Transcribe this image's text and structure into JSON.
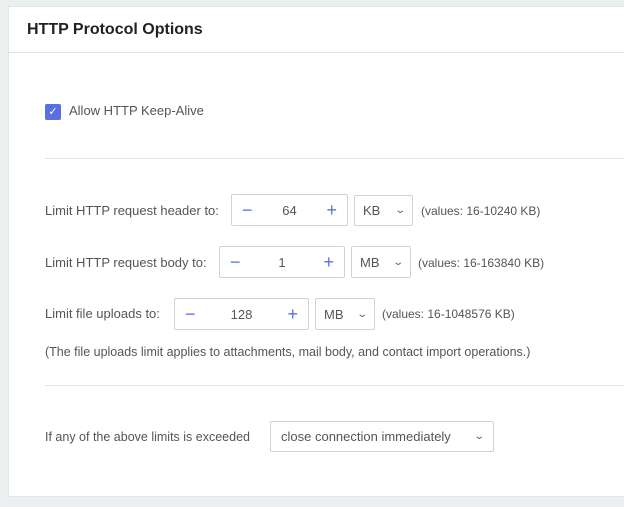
{
  "header": {
    "title": "HTTP Protocol Options"
  },
  "keepalive": {
    "label": "Allow HTTP Keep-Alive",
    "checked": true
  },
  "limits": [
    {
      "label": "Limit HTTP request header to:",
      "value": "64",
      "unit": "KB",
      "hint": "(values: 16-10240 KB)"
    },
    {
      "label": "Limit HTTP request body to:",
      "value": "1",
      "unit": "MB",
      "hint": "(values: 16-163840 KB)"
    },
    {
      "label": "Limit file uploads to:",
      "value": "128",
      "unit": "MB",
      "hint": "(values: 16-1048576 KB)"
    }
  ],
  "note": "(The file uploads limit applies to attachments, mail body, and contact import operations.)",
  "exceeded": {
    "label": "If any of the above limits is exceeded",
    "value": "close connection immediately"
  },
  "icons": {
    "minus": "−",
    "plus": "+",
    "chevron": "⌄",
    "check": "✓"
  },
  "colors": {
    "accent": "#5b6fe0"
  }
}
